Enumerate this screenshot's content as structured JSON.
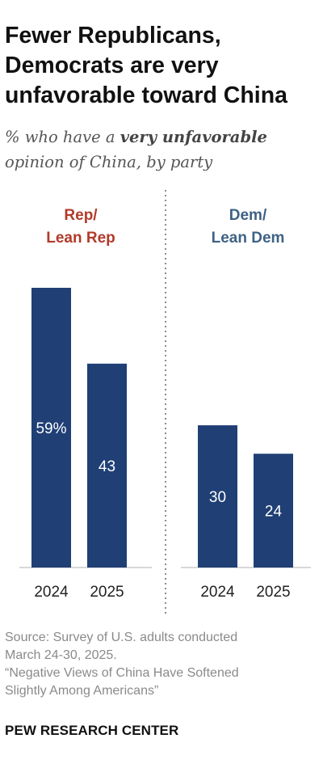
{
  "title_lines": [
    "Fewer Republicans,",
    "Democrats are very",
    "unfavorable toward China"
  ],
  "subtitle": {
    "pre": "% who have a ",
    "emphasis": "very unfavorable",
    "post": "opinion of China, by party"
  },
  "chart_data": {
    "type": "bar",
    "groups": [
      {
        "label_lines": [
          "Rep/",
          "Lean Rep"
        ],
        "label_color": "#b23a2a",
        "categories": [
          "2024",
          "2025"
        ],
        "values": [
          59,
          43
        ],
        "value_labels": [
          "59%",
          "43"
        ]
      },
      {
        "label_lines": [
          "Dem/",
          "Lean Dem"
        ],
        "label_color": "#3f6286",
        "categories": [
          "2024",
          "2025"
        ],
        "values": [
          30,
          24
        ],
        "value_labels": [
          "30",
          "24"
        ]
      }
    ],
    "bar_color": "#1f3f75",
    "ylim": [
      0,
      59
    ],
    "grid": false,
    "separator": "dotted"
  },
  "source_lines": [
    "Source: Survey of U.S. adults conducted",
    "March 24-30, 2025.",
    "“Negative Views of China Have Softened",
    "Slightly Among Americans”"
  ],
  "brand": "PEW RESEARCH CENTER"
}
